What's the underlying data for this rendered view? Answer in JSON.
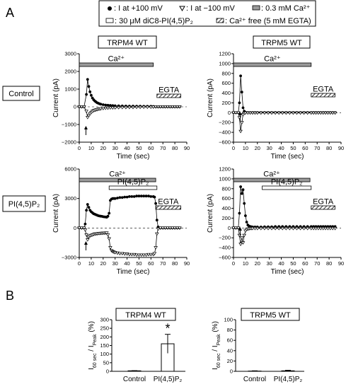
{
  "figure": {
    "panel_a": "A",
    "panel_b": "B",
    "legend": {
      "i_pos": ": I at +100 mV",
      "i_neg": ": I at −100 mV",
      "ca_bar": ": 0.3 mM Ca²⁺",
      "pip2_bar": ": 30 μM diC8-PI(4,5)P₂",
      "ca_free": ": Ca²⁺ free (5 mM EGTA)"
    },
    "row_labels": {
      "control": "Control",
      "pip2": "PI(4,5)P₂"
    },
    "col_titles": {
      "trpm4": "TRPM4 WT",
      "trpm5": "TRPM5 WT"
    },
    "labels": {
      "ca": "Ca²⁺",
      "egta": "EGTA",
      "pip2": "PI(4,5)P₂",
      "ylabel_current": "Current (pA)",
      "xlabel_time": "Time (sec)",
      "ylabel_ratio": "I60 sec / IPeak (%)",
      "ylabel_ratio_main": "I",
      "ylabel_ratio_sub1": "60 sec",
      "ylabel_ratio_mid": " / I",
      "ylabel_ratio_sub2": "Peak",
      "ylabel_ratio_unit": " (%)",
      "star": "*"
    },
    "colors": {
      "ca_bar": "#9a9a9a",
      "black": "#000000"
    }
  },
  "chart_data": [
    {
      "id": "trpm4-control",
      "type": "line",
      "title": "TRPM4 WT",
      "row": "Control",
      "xlabel": "Time (sec)",
      "ylabel": "Current (pA)",
      "xlim": [
        0,
        90
      ],
      "ylim": [
        -2000,
        3000
      ],
      "xticks": [
        0,
        10,
        20,
        30,
        40,
        50,
        60,
        70,
        80,
        90
      ],
      "yticks": [
        -2000,
        -1000,
        0,
        1000,
        2000,
        3000
      ],
      "bars": [
        {
          "label": "Ca²⁺",
          "kind": "ca",
          "x": [
            0,
            62
          ]
        },
        {
          "label": "EGTA",
          "kind": "egta",
          "x": [
            65,
            85
          ]
        }
      ],
      "arrow_x": 5,
      "series": [
        {
          "marker": "filled-circle",
          "x": [
            0,
            2,
            4,
            6,
            7,
            8,
            9,
            10,
            11,
            12,
            13,
            14,
            15,
            16,
            17,
            18,
            20,
            22,
            24,
            26,
            28,
            30,
            33,
            36,
            39,
            42,
            45,
            48,
            51,
            54,
            57,
            60,
            62,
            64,
            66,
            68,
            70,
            72,
            74,
            76,
            78,
            80,
            82,
            84
          ],
          "y": [
            0,
            0,
            0,
            700,
            1550,
            1150,
            850,
            650,
            500,
            400,
            330,
            280,
            230,
            200,
            170,
            150,
            120,
            100,
            90,
            80,
            70,
            60,
            55,
            50,
            45,
            40,
            40,
            35,
            35,
            30,
            30,
            30,
            20,
            0,
            0,
            0,
            0,
            0,
            0,
            0,
            0,
            0,
            0,
            0
          ]
        },
        {
          "marker": "open-triangle",
          "x": [
            0,
            2,
            4,
            6,
            7,
            8,
            9,
            10,
            11,
            12,
            13,
            14,
            15,
            16,
            17,
            18,
            20,
            22,
            24,
            26,
            28,
            30,
            33,
            36,
            39,
            42,
            45,
            48,
            51,
            54,
            57,
            60,
            62,
            64,
            66,
            68,
            70,
            72,
            74,
            76,
            78,
            80,
            82,
            84
          ],
          "y": [
            0,
            0,
            0,
            -250,
            -600,
            -500,
            -400,
            -320,
            -260,
            -220,
            -190,
            -170,
            -150,
            -130,
            -120,
            -110,
            -90,
            -80,
            -70,
            -60,
            -55,
            -50,
            -45,
            -40,
            -35,
            -30,
            -30,
            -25,
            -25,
            -20,
            -20,
            -20,
            -10,
            0,
            0,
            0,
            0,
            0,
            0,
            0,
            0,
            0,
            0,
            0
          ]
        }
      ]
    },
    {
      "id": "trpm5-control",
      "type": "line",
      "title": "TRPM5 WT",
      "row": "Control",
      "xlabel": "Time (sec)",
      "ylabel": "Current (pA)",
      "xlim": [
        0,
        90
      ],
      "ylim": [
        -600,
        1200
      ],
      "xticks": [
        0,
        10,
        20,
        30,
        40,
        50,
        60,
        70,
        80,
        90
      ],
      "yticks": [
        -600,
        -400,
        -200,
        0,
        200,
        400,
        600,
        800,
        1000,
        1200
      ],
      "bars": [
        {
          "label": "Ca²⁺",
          "kind": "ca",
          "x": [
            0,
            65
          ]
        },
        {
          "label": "EGTA",
          "kind": "egta",
          "x": [
            65,
            85
          ]
        }
      ],
      "arrow_x": 5,
      "series": [
        {
          "marker": "filled-circle",
          "x": [
            0,
            2,
            4,
            5,
            6,
            7,
            8,
            9,
            10,
            12,
            14,
            16,
            18,
            20,
            23,
            26,
            29,
            32,
            35,
            38,
            41,
            44,
            47,
            50,
            53,
            56,
            59,
            62,
            65,
            67,
            69,
            71,
            73,
            75,
            77,
            79,
            81,
            83,
            85
          ],
          "y": [
            0,
            0,
            0,
            200,
            750,
            420,
            100,
            30,
            10,
            5,
            5,
            5,
            5,
            5,
            5,
            5,
            5,
            5,
            5,
            5,
            5,
            5,
            5,
            5,
            5,
            5,
            5,
            5,
            5,
            5,
            5,
            5,
            5,
            5,
            5,
            5,
            5,
            5,
            5
          ]
        },
        {
          "marker": "open-triangle",
          "x": [
            0,
            2,
            4,
            5,
            6,
            7,
            8,
            9,
            10,
            12,
            14,
            16,
            18,
            20,
            23,
            26,
            29,
            32,
            35,
            38,
            41,
            44,
            47,
            50,
            53,
            56,
            59,
            62,
            65,
            67,
            69,
            71,
            73,
            75,
            77,
            79,
            81,
            83,
            85
          ],
          "y": [
            0,
            0,
            0,
            -100,
            -380,
            -200,
            -40,
            -10,
            -5,
            -5,
            -5,
            -5,
            -5,
            -5,
            -5,
            -5,
            -5,
            -5,
            -5,
            -5,
            -5,
            -5,
            -5,
            -5,
            -5,
            -5,
            -5,
            -5,
            -5,
            -5,
            -5,
            -5,
            -5,
            -5,
            -5,
            -5,
            -5,
            -5,
            -5
          ]
        }
      ]
    },
    {
      "id": "trpm4-pip2",
      "type": "line",
      "title": "",
      "row": "PI(4,5)P₂",
      "xlabel": "Time (sec)",
      "ylabel": "Current (pA)",
      "xlim": [
        0,
        90
      ],
      "ylim": [
        -3000,
        6000
      ],
      "xticks": [
        0,
        10,
        20,
        30,
        40,
        50,
        60,
        70,
        80,
        90
      ],
      "yticks": [
        -3000,
        0,
        3000,
        6000
      ],
      "bars": [
        {
          "label": "Ca²⁺",
          "kind": "ca",
          "x": [
            0,
            64
          ]
        },
        {
          "label": "PI(4,5)P₂",
          "kind": "pip2",
          "x": [
            25,
            65
          ]
        },
        {
          "label": "EGTA",
          "kind": "egta",
          "x": [
            64,
            85
          ]
        }
      ],
      "arrow_x": 5,
      "series": [
        {
          "marker": "filled-circle",
          "x": [
            0,
            2,
            4,
            5,
            6,
            7,
            8,
            9,
            10,
            11,
            12,
            13,
            14,
            15,
            16,
            17,
            18,
            19,
            20,
            21,
            22,
            23,
            24,
            25,
            26,
            27,
            28,
            29,
            30,
            32,
            34,
            36,
            38,
            40,
            42,
            44,
            46,
            48,
            50,
            52,
            54,
            56,
            58,
            60,
            62,
            63,
            64,
            65,
            66,
            68,
            70,
            72,
            74,
            76,
            78,
            80,
            82,
            84
          ],
          "y": [
            0,
            0,
            0,
            400,
            1800,
            2400,
            2100,
            1800,
            1650,
            1550,
            1450,
            1400,
            1350,
            1300,
            1250,
            1220,
            1200,
            1180,
            1150,
            1130,
            1120,
            1100,
            1200,
            1500,
            2800,
            2950,
            3000,
            3000,
            3000,
            3050,
            3100,
            3100,
            3150,
            3150,
            3200,
            3200,
            3200,
            3250,
            3250,
            3250,
            3250,
            3250,
            3250,
            3200,
            3200,
            3150,
            2500,
            800,
            100,
            0,
            0,
            0,
            0,
            0,
            0,
            0,
            0,
            0
          ]
        },
        {
          "marker": "open-triangle",
          "x": [
            0,
            2,
            4,
            5,
            6,
            7,
            8,
            9,
            10,
            11,
            12,
            13,
            14,
            15,
            16,
            17,
            18,
            19,
            20,
            21,
            22,
            23,
            24,
            25,
            26,
            27,
            28,
            29,
            30,
            32,
            34,
            36,
            38,
            40,
            42,
            44,
            46,
            48,
            50,
            52,
            54,
            56,
            58,
            60,
            62,
            63,
            64,
            65,
            66,
            68,
            70,
            72,
            74,
            76,
            78,
            80,
            82,
            84
          ],
          "y": [
            0,
            0,
            0,
            -200,
            -700,
            -1200,
            -900,
            -800,
            -750,
            -700,
            -650,
            -600,
            -600,
            -580,
            -560,
            -550,
            -540,
            -530,
            -520,
            -510,
            -500,
            -500,
            -700,
            -1100,
            -2000,
            -2300,
            -2400,
            -2450,
            -2500,
            -2550,
            -2600,
            -2600,
            -2650,
            -2650,
            -2700,
            -2700,
            -2700,
            -2750,
            -2750,
            -2750,
            -2750,
            -2750,
            -2700,
            -2700,
            -2700,
            -2600,
            -2000,
            -600,
            -100,
            0,
            0,
            0,
            0,
            0,
            0,
            0,
            0,
            0
          ]
        }
      ]
    },
    {
      "id": "trpm5-pip2",
      "type": "line",
      "title": "",
      "row": "PI(4,5)P₂",
      "xlabel": "Time (sec)",
      "ylabel": "Current (pA)",
      "xlim": [
        0,
        90
      ],
      "ylim": [
        -600,
        1200
      ],
      "xticks": [
        0,
        10,
        20,
        30,
        40,
        50,
        60,
        70,
        80,
        90
      ],
      "yticks": [
        -600,
        -400,
        -200,
        0,
        200,
        400,
        600,
        800,
        1000,
        1200
      ],
      "bars": [
        {
          "label": "Ca²⁺",
          "kind": "ca",
          "x": [
            0,
            64
          ]
        },
        {
          "label": "PI(4,5)P₂",
          "kind": "pip2",
          "x": [
            24,
            65
          ]
        },
        {
          "label": "EGTA",
          "kind": "egta",
          "x": [
            65,
            85
          ]
        }
      ],
      "arrow_x": 5,
      "series": [
        {
          "marker": "filled-circle",
          "x": [
            0,
            2,
            4,
            5,
            6,
            7,
            8,
            9,
            10,
            11,
            12,
            13,
            14,
            15,
            16,
            18,
            20,
            23,
            26,
            29,
            32,
            35,
            38,
            41,
            44,
            47,
            50,
            53,
            56,
            59,
            62,
            65,
            67,
            69,
            71,
            73,
            75,
            77,
            79,
            81,
            83,
            85
          ],
          "y": [
            0,
            0,
            0,
            300,
            840,
            700,
            780,
            500,
            250,
            120,
            60,
            40,
            30,
            25,
            20,
            20,
            20,
            20,
            25,
            25,
            25,
            30,
            30,
            30,
            30,
            30,
            30,
            30,
            30,
            30,
            30,
            30,
            30,
            30,
            30,
            30,
            30,
            30,
            30,
            30,
            30,
            30
          ]
        },
        {
          "marker": "open-triangle",
          "x": [
            0,
            2,
            4,
            5,
            6,
            7,
            8,
            9,
            10,
            11,
            12,
            13,
            14,
            15,
            16,
            18,
            20,
            23,
            26,
            29,
            32,
            35,
            38,
            41,
            44,
            47,
            50,
            53,
            56,
            59,
            62,
            65,
            67,
            69,
            71,
            73,
            75,
            77,
            79,
            81,
            83,
            85
          ],
          "y": [
            0,
            0,
            0,
            -150,
            -330,
            -200,
            -300,
            -150,
            -60,
            -30,
            -20,
            -15,
            -10,
            -10,
            -10,
            -10,
            -10,
            -10,
            -10,
            -10,
            -10,
            -10,
            -10,
            -10,
            -10,
            -10,
            -10,
            -10,
            -10,
            -10,
            -10,
            -10,
            -10,
            -10,
            -10,
            -10,
            -10,
            -10,
            -10,
            -10,
            -10,
            -10
          ]
        }
      ]
    },
    {
      "id": "trpm4-ratio",
      "type": "bar",
      "title": "TRPM4 WT",
      "categories": [
        "Control",
        "PI(4,5)P₂"
      ],
      "values": [
        3,
        160
      ],
      "errors": [
        1,
        55
      ],
      "significance": [
        "",
        "*"
      ],
      "ylabel": "I60 sec / IPeak (%)",
      "ylim": [
        0,
        300
      ],
      "yticks": [
        0,
        50,
        100,
        150,
        200,
        250,
        300
      ]
    },
    {
      "id": "trpm5-ratio",
      "type": "bar",
      "title": "TRPM5 WT",
      "categories": [
        "Control",
        "PI(4,5)P₂"
      ],
      "values": [
        0.5,
        1
      ],
      "errors": [
        0.5,
        1
      ],
      "significance": [
        "",
        ""
      ],
      "ylabel": "I60 sec / IPeak (%)",
      "ylim": [
        0,
        100
      ],
      "yticks": [
        0,
        20,
        40,
        60,
        80,
        100
      ]
    }
  ]
}
